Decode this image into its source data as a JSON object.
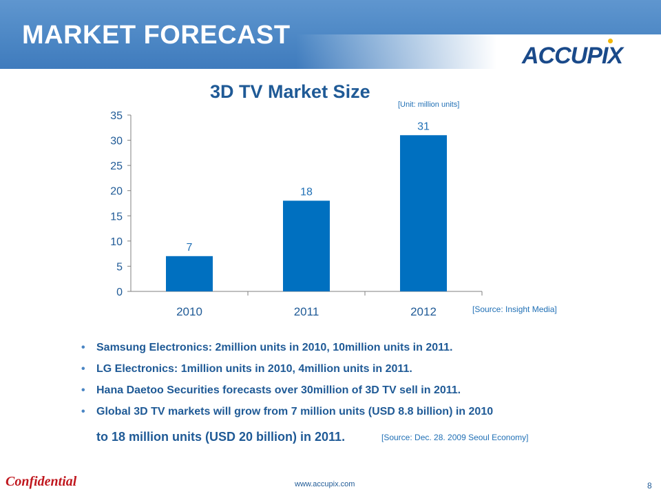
{
  "header": {
    "title": "MARKET FORECAST",
    "logo": "ACCUPIX"
  },
  "chart_meta": {
    "unit_note": "[Unit: million units]",
    "source_note": "[Source: Insight Media]"
  },
  "chart_data": {
    "type": "bar",
    "title": "3D TV Market Size",
    "categories": [
      "2010",
      "2011",
      "2012"
    ],
    "values": [
      7,
      18,
      31
    ],
    "data_labels": [
      "7",
      "18",
      "31"
    ],
    "xlabel": "",
    "ylabel": "",
    "ylim": [
      0,
      35
    ],
    "yticks": [
      0,
      5,
      10,
      15,
      20,
      25,
      30,
      35
    ],
    "grid": false,
    "legend": "none",
    "bar_color": "#0070c0",
    "label_color": "#1f6fb5"
  },
  "bullets": [
    "Samsung Electronics: 2million units in 2010, 10million units in 2011.",
    "LG Electronics: 1million units in 2010, 4million units in 2011.",
    "Hana Daetoo Securities forecasts over 30million of 3D TV sell in 2011.",
    "Global 3D TV markets will grow from 7 million units (USD 8.8 billion) in 2010"
  ],
  "bullet_continuation": "to 18 million units (USD 20 billion) in 2011.",
  "citation": "[Source: Dec. 28. 2009 Seoul Economy]",
  "footer": {
    "confidential": "Confidential",
    "website": "www.accupix.com",
    "page_number": "8"
  },
  "colors": {
    "header": "#4b86c4",
    "text": "#1f5a96",
    "bar": "#0070c0",
    "confidential": "#c0181f"
  }
}
